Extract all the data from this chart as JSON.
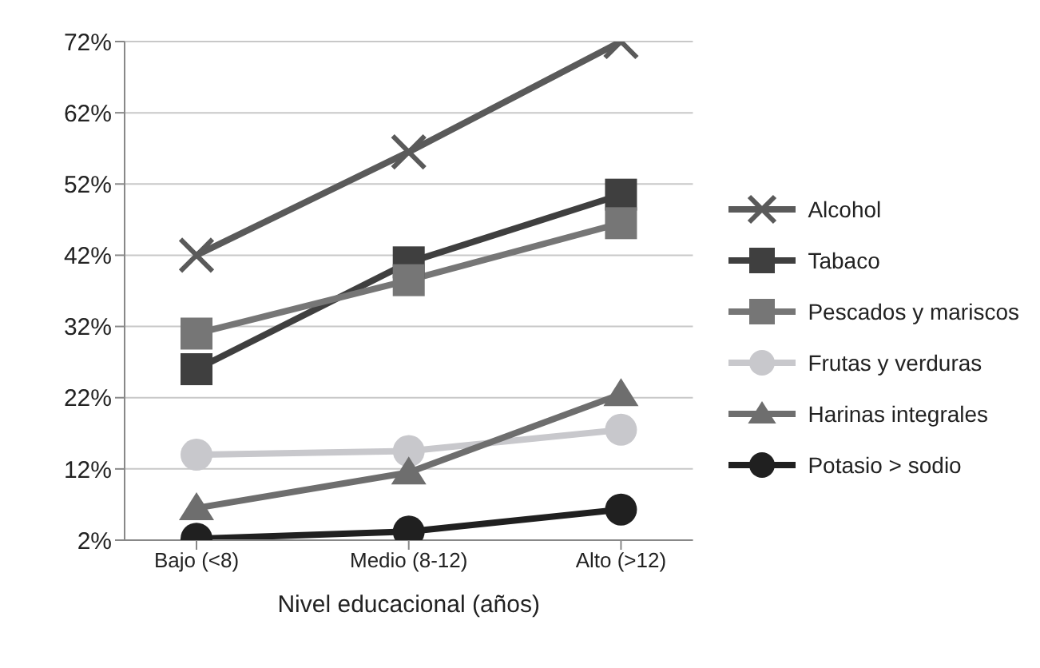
{
  "chart_data": {
    "type": "line",
    "xlabel": "Nivel educacional (años)",
    "categories": [
      "Bajo (<8)",
      "Medio (8-12)",
      "Alto (>12)"
    ],
    "series": [
      {
        "name": "Alcohol",
        "color": "#5a5a5a",
        "marker": "cross",
        "values": [
          42,
          56.5,
          72
        ]
      },
      {
        "name": "Tabaco",
        "color": "#3f3f3f",
        "marker": "square",
        "values": [
          26,
          41,
          50.5
        ]
      },
      {
        "name": "Pescados y mariscos",
        "color": "#767676",
        "marker": "square",
        "values": [
          31,
          38.5,
          46.5
        ]
      },
      {
        "name": "Frutas y verduras",
        "color": "#c8c8cc",
        "marker": "circle",
        "values": [
          14,
          14.5,
          17.5
        ]
      },
      {
        "name": "Harinas integrales",
        "color": "#6e6e6e",
        "marker": "triangle",
        "values": [
          6.5,
          11.5,
          22.5
        ]
      },
      {
        "name": "Potasio > sodio",
        "color": "#202020",
        "marker": "circle",
        "values": [
          2.2,
          3.2,
          6.3
        ]
      }
    ],
    "ylim": [
      2,
      72
    ],
    "yticks": [
      {
        "value": 2,
        "label": "2%"
      },
      {
        "value": 12,
        "label": "12%"
      },
      {
        "value": 22,
        "label": "22%"
      },
      {
        "value": 32,
        "label": "32%"
      },
      {
        "value": 42,
        "label": "42%"
      },
      {
        "value": 52,
        "label": "52%"
      },
      {
        "value": 62,
        "label": "62%"
      },
      {
        "value": 72,
        "label": "72%"
      }
    ],
    "grid": "y",
    "legend": "right",
    "line_style": "solid"
  }
}
